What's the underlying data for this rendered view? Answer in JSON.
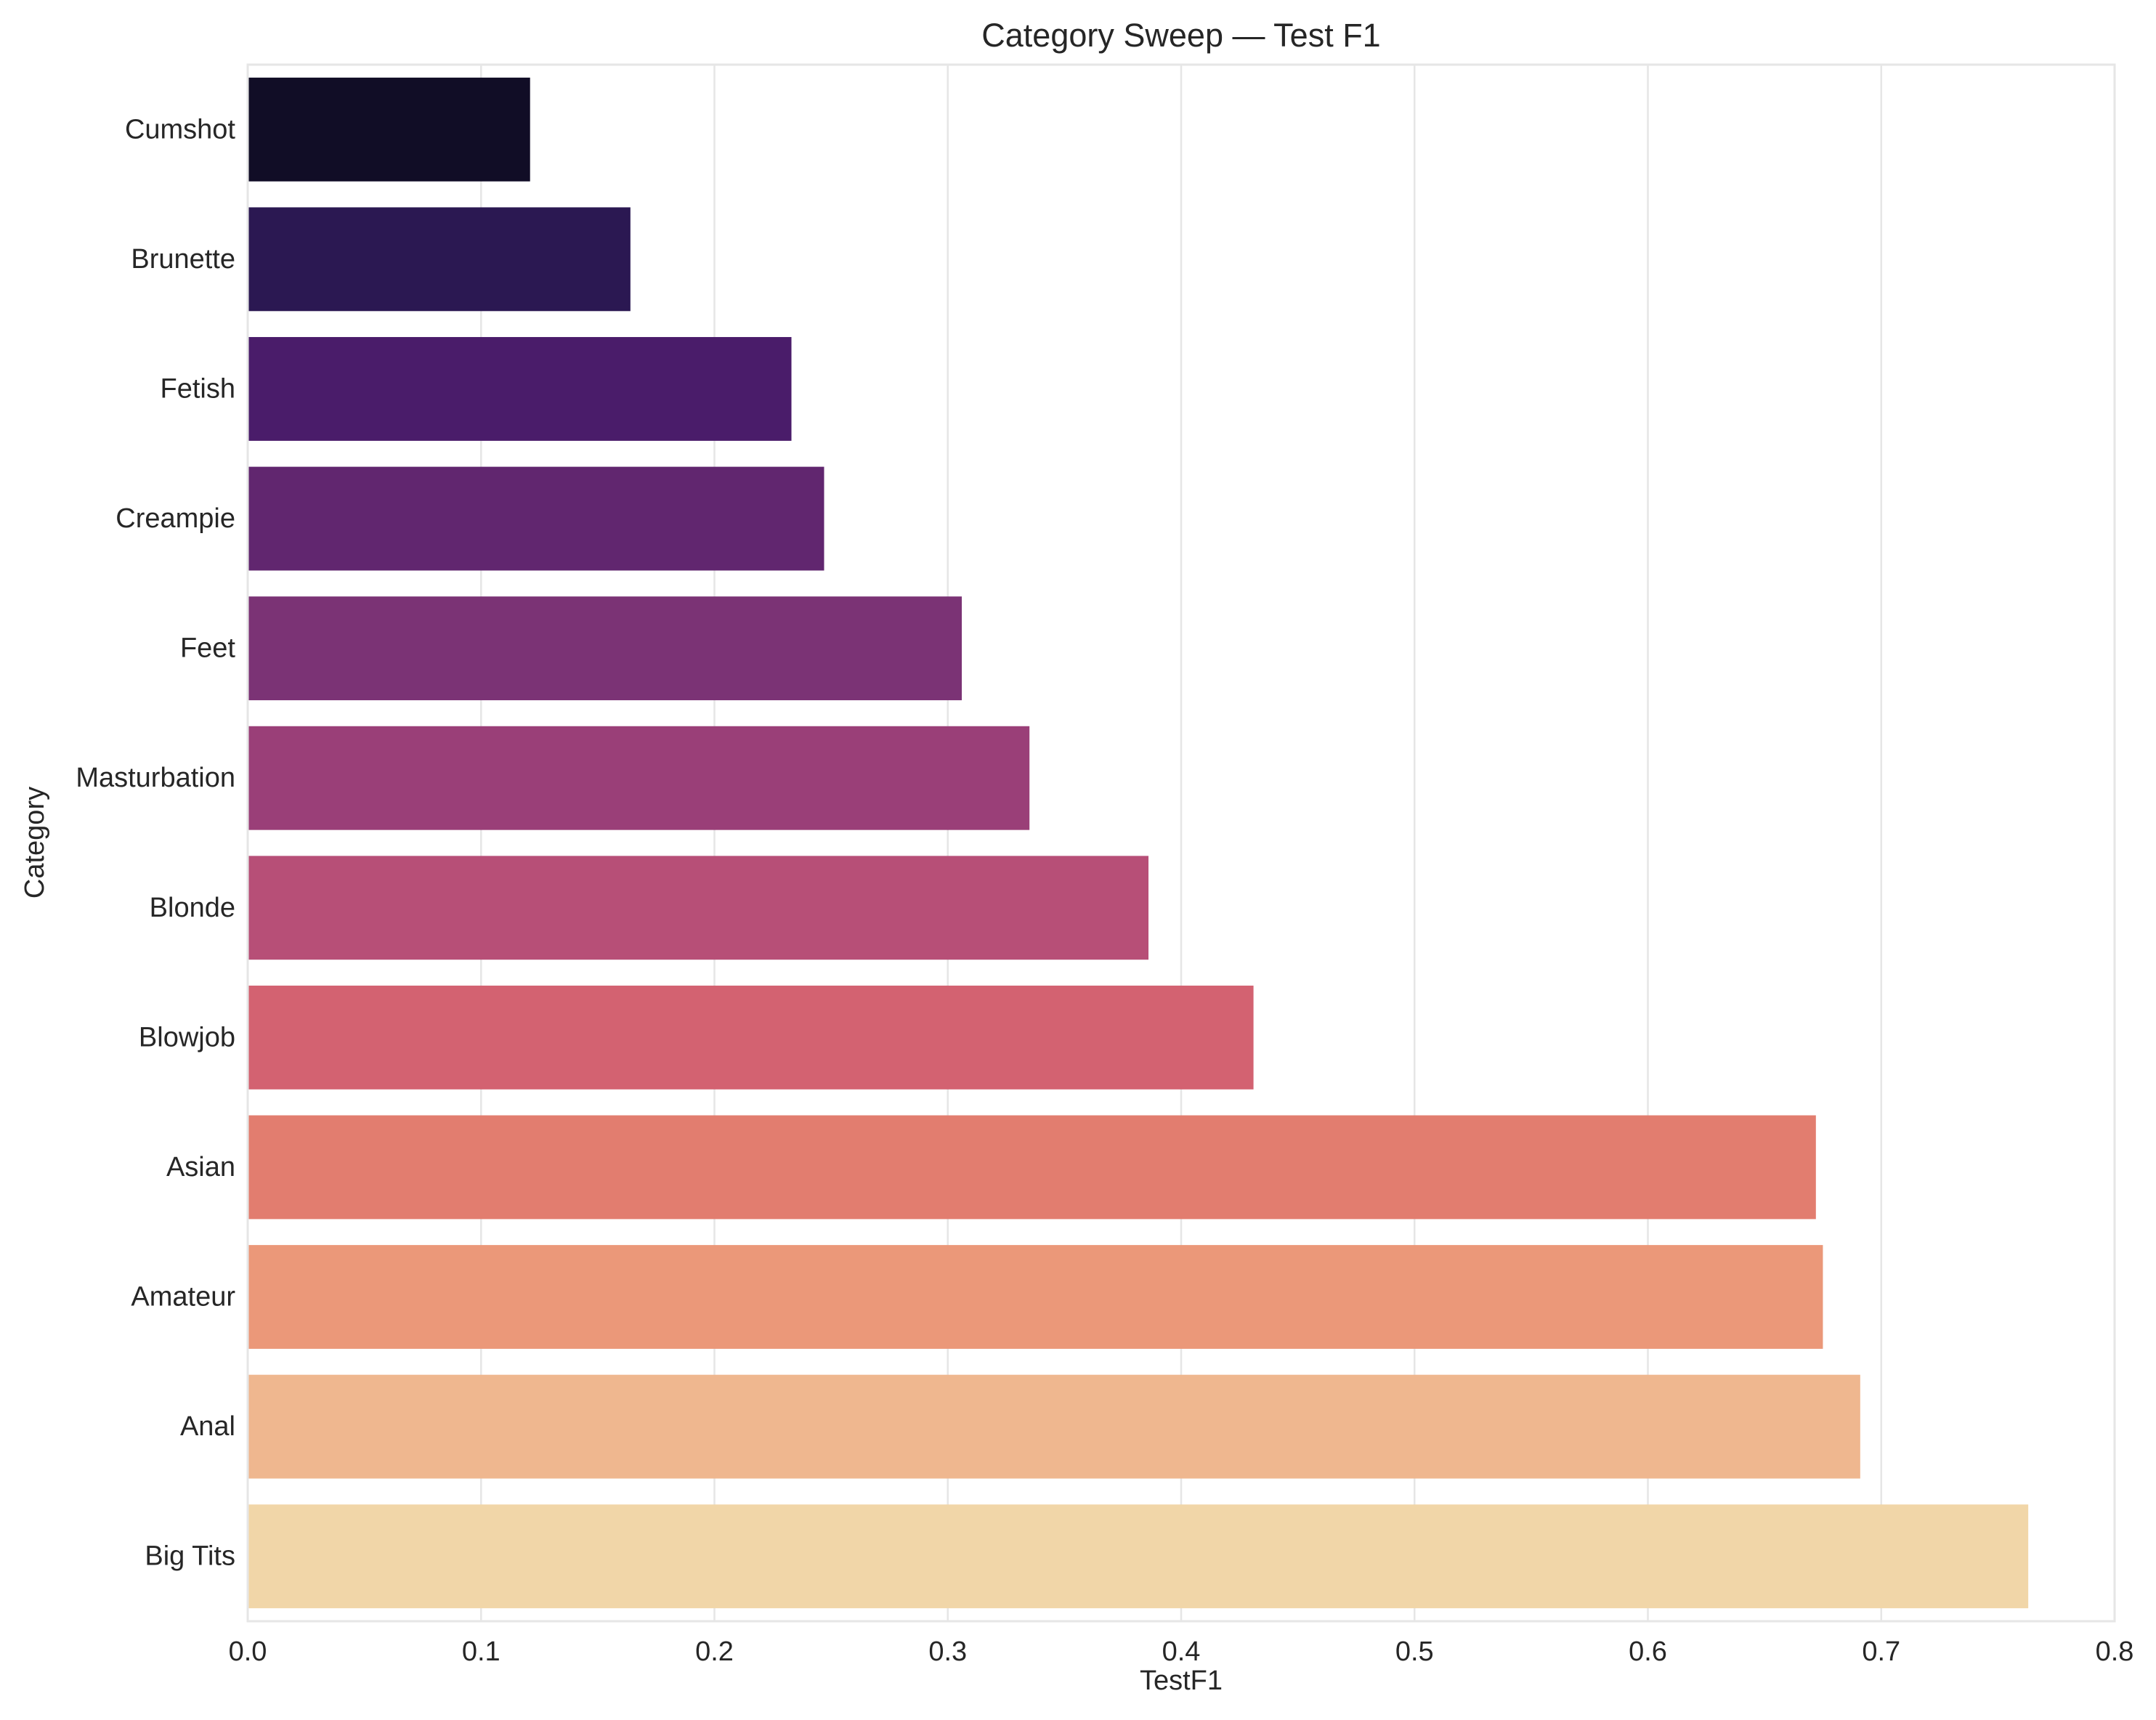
{
  "chart_data": {
    "type": "bar",
    "orientation": "horizontal",
    "title": "Category Sweep — Test F1",
    "xlabel": "TestF1",
    "ylabel": "Category",
    "xlim": [
      0,
      0.8
    ],
    "xticks": [
      0.0,
      0.1,
      0.2,
      0.3,
      0.4,
      0.5,
      0.6,
      0.7,
      0.8
    ],
    "xtick_labels": [
      "0.0",
      "0.1",
      "0.2",
      "0.3",
      "0.4",
      "0.5",
      "0.6",
      "0.7",
      "0.8"
    ],
    "grid": true,
    "categories": [
      "Cumshot",
      "Brunette",
      "Fetish",
      "Creampie",
      "Feet",
      "Masturbation",
      "Blonde",
      "Blowjob",
      "Asian",
      "Amateur",
      "Anal",
      "Big Tits"
    ],
    "values": [
      0.121,
      0.164,
      0.233,
      0.247,
      0.306,
      0.335,
      0.386,
      0.431,
      0.672,
      0.675,
      0.691,
      0.763
    ],
    "colors": [
      "#110d26",
      "#2b1852",
      "#4a1c6a",
      "#61266f",
      "#7b3375",
      "#9a3f78",
      "#b74f77",
      "#d36271",
      "#e27d6f",
      "#eb9879",
      "#efb78f",
      "#f1d6a8"
    ]
  },
  "style": {
    "grid_color": "#e6e6e6",
    "spine_color": "#e6e6e6",
    "text_color": "#262626"
  }
}
